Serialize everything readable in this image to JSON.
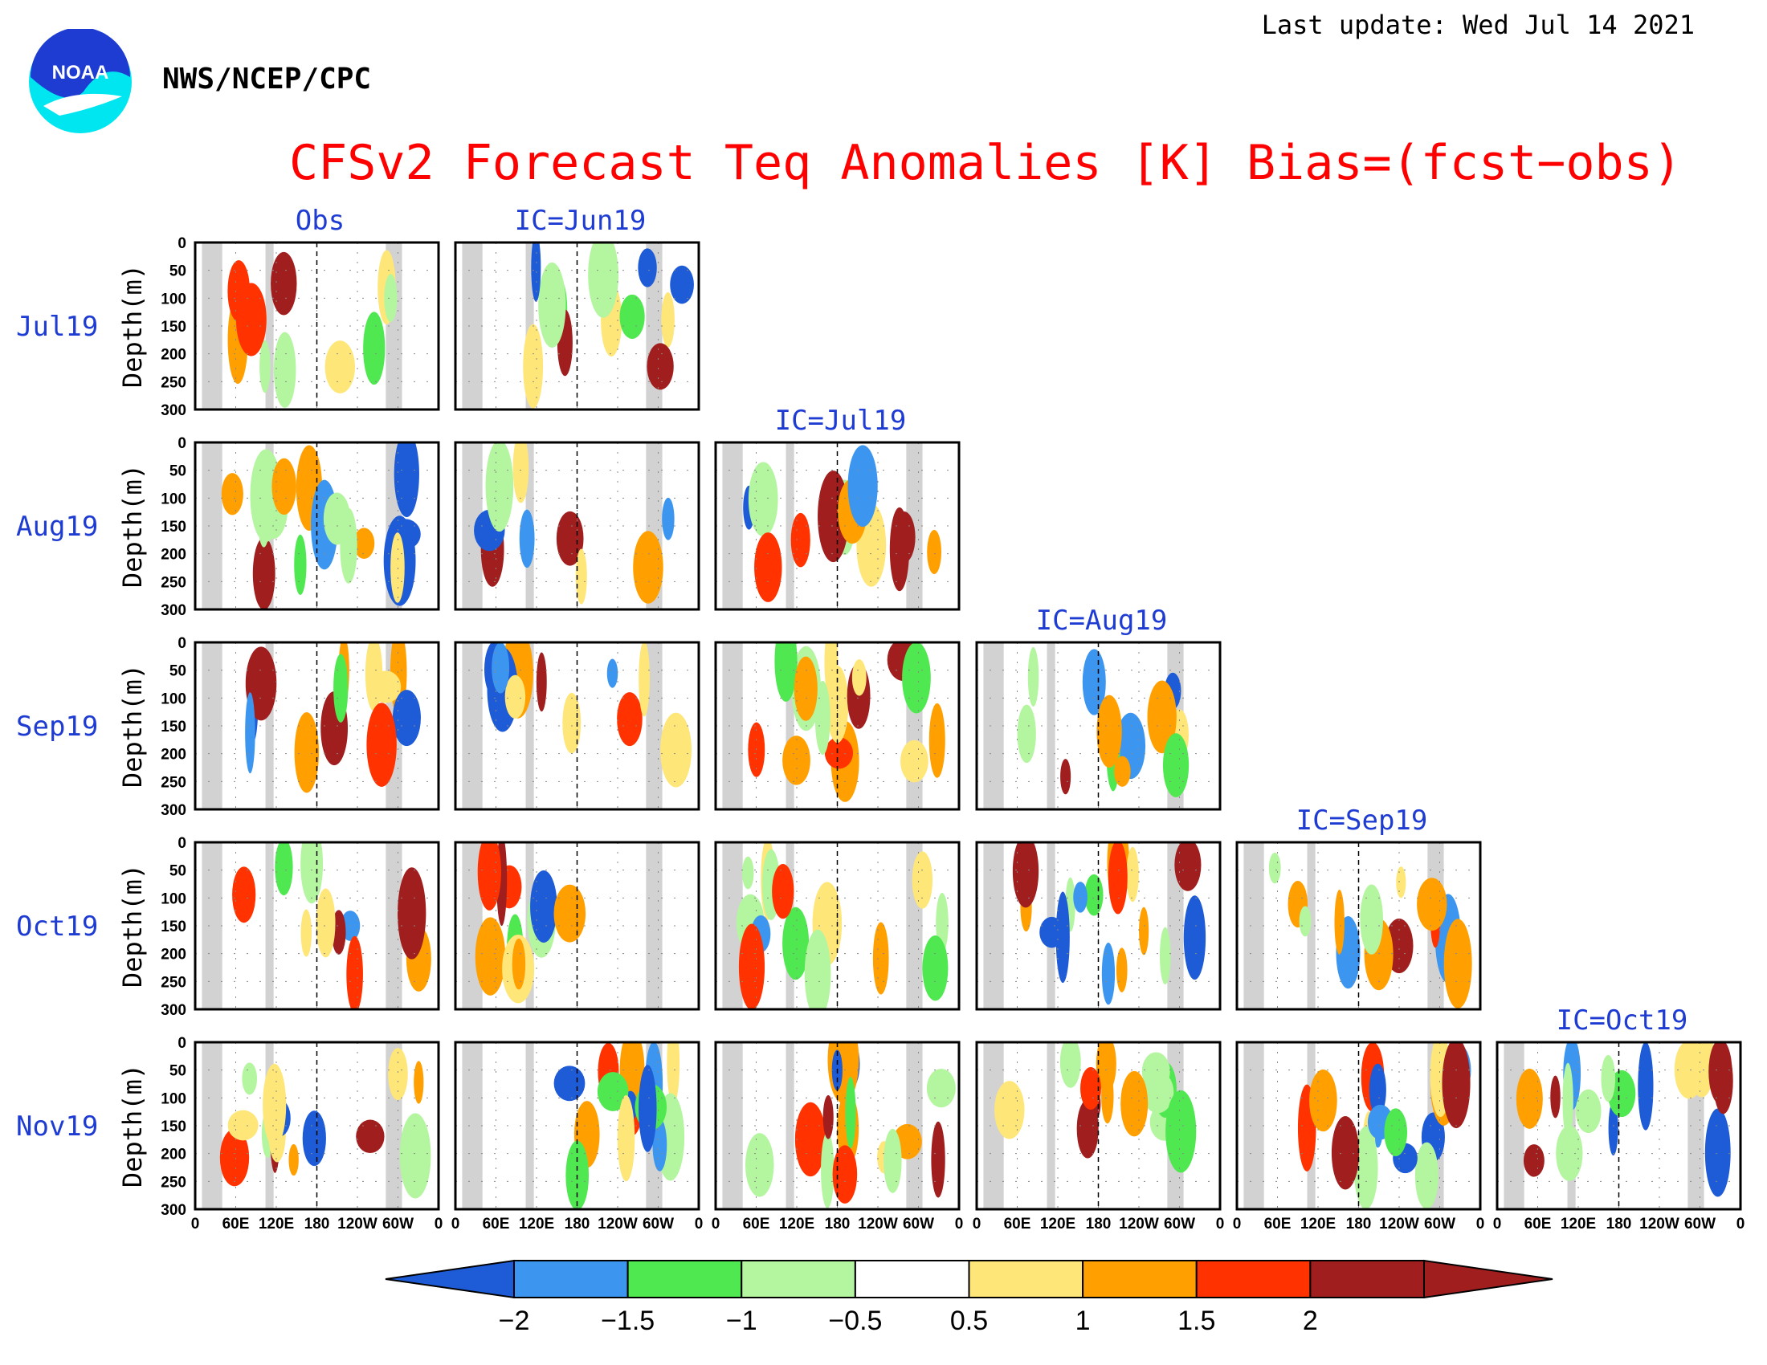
{
  "header": {
    "last_update": "Last update: Wed Jul 14 2021",
    "organization": "NWS/NCEP/CPC",
    "logo_text": "NOAA",
    "logo_icon": "noaa-logo-icon"
  },
  "chart_data": {
    "type": "heatmap",
    "title": "CFSv2 Forecast Teq Anomalies [K] Bias=(fcst−obs)",
    "ylabel": "Depth(m)",
    "xlabel": "",
    "y_ticks": [
      "0",
      "50",
      "100",
      "150",
      "200",
      "250",
      "300"
    ],
    "ylim": [
      0,
      300
    ],
    "x_ticks": [
      "0",
      "60E",
      "120E",
      "180",
      "120W",
      "60W",
      "0"
    ],
    "xlim_degrees_east": [
      0,
      360
    ],
    "row_labels": [
      "Jul19",
      "Aug19",
      "Sep19",
      "Oct19",
      "Nov19"
    ],
    "column_headers": [
      "Obs",
      "IC=Jun19",
      "IC=Jul19",
      "IC=Aug19",
      "IC=Sep19",
      "IC=Oct19"
    ],
    "land_mask_longitudes_east": [
      [
        10,
        40
      ],
      [
        104,
        116
      ],
      [
        282,
        306
      ]
    ],
    "colorbar": {
      "levels": [
        "−2",
        "−1.5",
        "−1",
        "−0.5",
        "0.5",
        "1",
        "1.5",
        "2"
      ],
      "colors": [
        "#1e5bd6",
        "#3c96f0",
        "#50e850",
        "#b4f5a0",
        "#ffffff",
        "#ffe678",
        "#ffa000",
        "#ff3200",
        "#a01e1e"
      ]
    },
    "panels": [
      {
        "row": "Jul19",
        "column": "Obs"
      },
      {
        "row": "Jul19",
        "column": "IC=Jun19"
      },
      {
        "row": "Aug19",
        "column": "Obs"
      },
      {
        "row": "Aug19",
        "column": "IC=Jun19"
      },
      {
        "row": "Aug19",
        "column": "IC=Jul19"
      },
      {
        "row": "Sep19",
        "column": "Obs"
      },
      {
        "row": "Sep19",
        "column": "IC=Jun19"
      },
      {
        "row": "Sep19",
        "column": "IC=Jul19"
      },
      {
        "row": "Sep19",
        "column": "IC=Aug19"
      },
      {
        "row": "Oct19",
        "column": "Obs"
      },
      {
        "row": "Oct19",
        "column": "IC=Jun19"
      },
      {
        "row": "Oct19",
        "column": "IC=Jul19"
      },
      {
        "row": "Oct19",
        "column": "IC=Aug19"
      },
      {
        "row": "Oct19",
        "column": "IC=Sep19"
      },
      {
        "row": "Nov19",
        "column": "Obs"
      },
      {
        "row": "Nov19",
        "column": "IC=Jun19"
      },
      {
        "row": "Nov19",
        "column": "IC=Jul19"
      },
      {
        "row": "Nov19",
        "column": "IC=Aug19"
      },
      {
        "row": "Nov19",
        "column": "IC=Sep19"
      },
      {
        "row": "Nov19",
        "column": "IC=Oct19"
      }
    ]
  }
}
